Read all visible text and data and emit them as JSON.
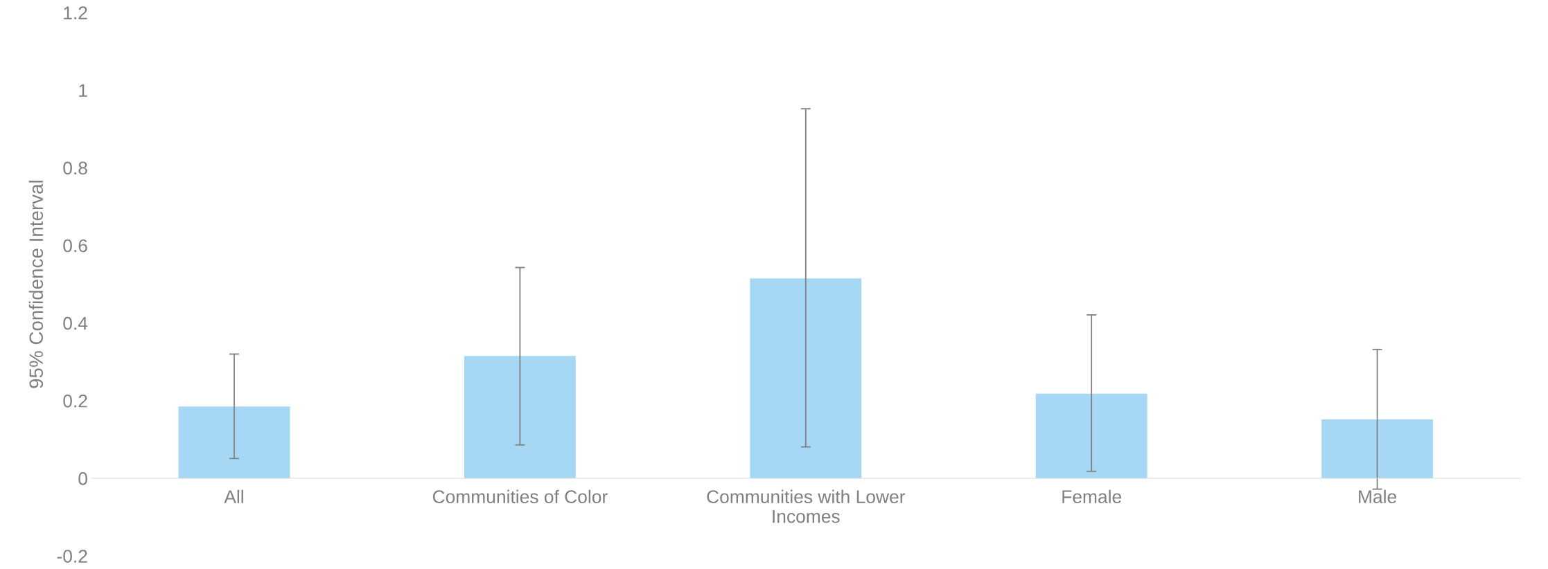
{
  "chart_data": {
    "type": "bar",
    "ylabel": "95% Confidence Interval",
    "categories": [
      "All",
      "Communities of Color",
      "Communities with Lower\nIncomes",
      "Female",
      "Male"
    ],
    "values": [
      0.185,
      0.315,
      0.515,
      0.218,
      0.152
    ],
    "errors": [
      [
        0.051,
        0.32
      ],
      [
        0.086,
        0.543
      ],
      [
        0.081,
        0.952
      ],
      [
        0.018,
        0.421
      ],
      [
        -0.028,
        0.332
      ]
    ],
    "color": "#a6d8f5",
    "ylim": [
      -0.2,
      1.2
    ],
    "yticks": [
      -0.2,
      0,
      0.2,
      0.4,
      0.6,
      0.8,
      1,
      1.2
    ],
    "grid": false,
    "legend": false
  }
}
